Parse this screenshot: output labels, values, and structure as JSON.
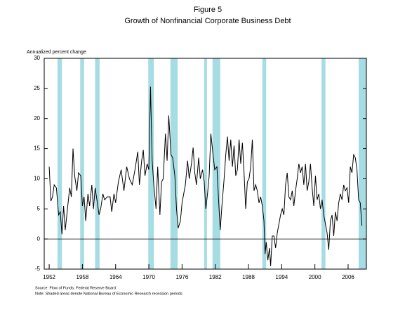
{
  "chart_data": {
    "type": "line",
    "title": "Figure 5",
    "subtitle": "Growth of Nonfinancial Corporate Business Debt",
    "ylabel": "Annualized percent change",
    "source": "Source: Flow of Funds, Federal Reserve Board",
    "note": "Note: Shaded areas denote National Bureau of Economic Research recession periods",
    "xlim": [
      1951.1,
      2009.3
    ],
    "ylim": [
      -5,
      30
    ],
    "xticks": [
      1952,
      1958,
      1964,
      1970,
      1976,
      1982,
      1988,
      1994,
      2000,
      2006
    ],
    "yticks": [
      -5,
      0,
      5,
      10,
      15,
      20,
      25,
      30
    ],
    "shade_color": "#a6dce3",
    "recessions": [
      [
        1953.5,
        1954.3
      ],
      [
        1957.6,
        1958.3
      ],
      [
        1960.3,
        1961.1
      ],
      [
        1969.9,
        1970.9
      ],
      [
        1973.9,
        1975.2
      ],
      [
        1980.0,
        1980.5
      ],
      [
        1981.5,
        1982.9
      ],
      [
        1990.5,
        1991.2
      ],
      [
        2001.2,
        2001.9
      ],
      [
        2007.9,
        2009.3
      ]
    ],
    "series": [
      {
        "color": "#000000",
        "x": [
          1952.0,
          1952.3,
          1952.6,
          1952.9,
          1953.3,
          1953.7,
          1954.0,
          1954.3,
          1954.6,
          1954.9,
          1955.3,
          1955.7,
          1956.0,
          1956.3,
          1956.6,
          1957.0,
          1957.3,
          1957.7,
          1958.0,
          1958.3,
          1958.6,
          1959.0,
          1959.3,
          1959.7,
          1960.0,
          1960.3,
          1960.7,
          1961.0,
          1961.3,
          1961.7,
          1962.0,
          1962.5,
          1963.0,
          1963.3,
          1963.7,
          1964.0,
          1964.5,
          1965.0,
          1965.5,
          1966.0,
          1966.5,
          1967.0,
          1967.5,
          1968.0,
          1968.3,
          1968.7,
          1969.0,
          1969.3,
          1969.7,
          1970.0,
          1970.3,
          1970.6,
          1970.9,
          1971.3,
          1971.6,
          1972.0,
          1972.3,
          1972.6,
          1973.0,
          1973.3,
          1973.6,
          1974.0,
          1974.3,
          1974.7,
          1975.0,
          1975.3,
          1975.7,
          1976.0,
          1976.3,
          1976.6,
          1977.0,
          1977.3,
          1977.7,
          1978.0,
          1978.3,
          1978.6,
          1979.0,
          1979.3,
          1979.7,
          1980.0,
          1980.3,
          1980.6,
          1980.9,
          1981.2,
          1981.6,
          1981.9,
          1982.3,
          1982.6,
          1982.9,
          1983.2,
          1983.6,
          1983.9,
          1984.2,
          1984.5,
          1984.8,
          1985.1,
          1985.4,
          1985.7,
          1986.0,
          1986.3,
          1986.6,
          1986.9,
          1987.2,
          1987.5,
          1987.8,
          1988.1,
          1988.4,
          1988.7,
          1989.0,
          1989.3,
          1989.6,
          1989.9,
          1990.2,
          1990.5,
          1990.8,
          1991.0,
          1991.2,
          1991.5,
          1991.8,
          1992.0,
          1992.3,
          1992.6,
          1992.9,
          1993.2,
          1993.5,
          1993.8,
          1994.1,
          1994.4,
          1994.7,
          1995.0,
          1995.3,
          1995.6,
          1995.9,
          1996.2,
          1996.5,
          1996.8,
          1997.1,
          1997.4,
          1997.7,
          1998.0,
          1998.3,
          1998.6,
          1998.9,
          1999.2,
          1999.5,
          1999.8,
          2000.1,
          2000.4,
          2000.7,
          2001.0,
          2001.3,
          2001.6,
          2001.9,
          2002.2,
          2002.5,
          2002.8,
          2003.1,
          2003.4,
          2003.7,
          2004.0,
          2004.3,
          2004.6,
          2004.9,
          2005.2,
          2005.5,
          2005.8,
          2006.1,
          2006.4,
          2006.7,
          2007.0,
          2007.3,
          2007.6,
          2007.9,
          2008.2,
          2008.5
        ],
        "values": [
          12,
          6.3,
          7,
          9,
          8.5,
          4,
          4.5,
          0.8,
          5.5,
          1.5,
          5,
          8.5,
          7,
          15,
          10.5,
          8,
          11,
          10.5,
          5.5,
          7,
          3,
          7.5,
          5.5,
          9,
          5,
          8.5,
          6,
          4,
          5,
          7.5,
          6.5,
          7,
          7,
          4.5,
          7.5,
          6,
          9.5,
          11.5,
          8,
          12,
          10,
          9,
          11.5,
          14.5,
          9,
          13,
          14.8,
          10.5,
          12.5,
          11.5,
          25.3,
          13,
          9,
          5,
          12,
          4,
          9.5,
          10,
          17.5,
          13,
          20.5,
          14,
          13.5,
          10.5,
          5,
          1.8,
          3,
          6,
          7.5,
          9,
          13,
          10,
          12.5,
          15.2,
          11,
          9,
          13.5,
          10,
          11.5,
          9.5,
          5,
          7.5,
          10.5,
          17.5,
          14,
          11.5,
          12,
          6.5,
          1.5,
          5.5,
          10,
          14,
          17,
          13,
          16.5,
          12,
          15.5,
          10.5,
          11.5,
          16.5,
          12.5,
          16,
          11,
          5,
          9.5,
          10,
          12,
          16.5,
          8,
          9,
          8,
          6,
          7,
          5.5,
          3,
          -2.5,
          -0.5,
          -3.5,
          -1.5,
          -4.5,
          0.5,
          0.5,
          -1.5,
          1,
          2.5,
          4,
          5,
          4,
          9,
          11,
          7,
          6.5,
          8,
          5.5,
          8,
          10,
          12.5,
          11,
          12,
          9,
          12.5,
          8,
          9.5,
          12.5,
          8.5,
          5.5,
          10.5,
          6.5,
          7.5,
          5,
          6.5,
          4,
          2.5,
          1,
          -1.8,
          3,
          4,
          0.5,
          4.5,
          3,
          6,
          7.5,
          6.5,
          9,
          8,
          8.5,
          6,
          12,
          11,
          14,
          13.5,
          11.5,
          6.5,
          6,
          2.2
        ]
      }
    ]
  }
}
